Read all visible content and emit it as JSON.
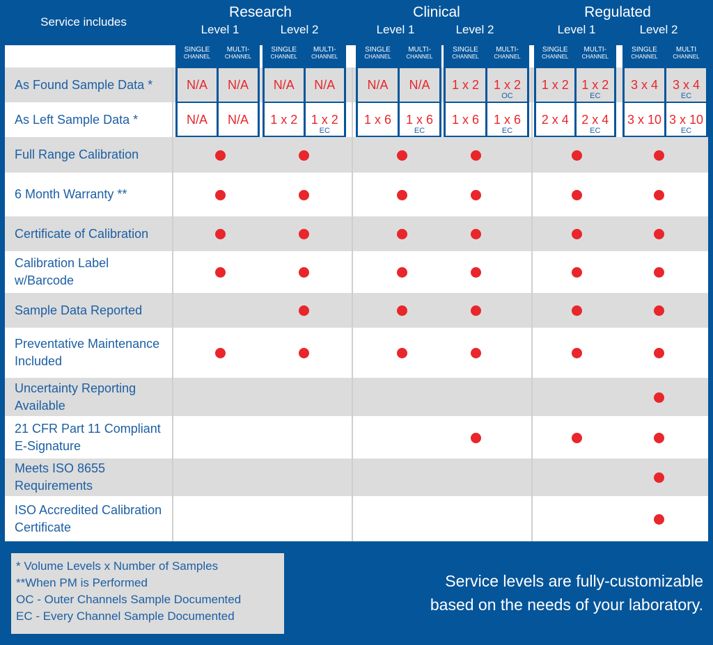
{
  "header": {
    "service_includes": "Service includes",
    "groups": [
      {
        "name": "Research",
        "levels": [
          "Level 1",
          "Level 2"
        ]
      },
      {
        "name": "Clinical",
        "levels": [
          "Level 1",
          "Level 2"
        ]
      },
      {
        "name": "Regulated",
        "levels": [
          "Level 1",
          "Level 2"
        ]
      }
    ]
  },
  "channel_headers": [
    [
      "SINGLE",
      "CHANNEL"
    ],
    [
      "MULTI-",
      "CHANNEL"
    ],
    [
      "SINGLE",
      "CHANNEL"
    ],
    [
      "MULTI-",
      "CHANNEL"
    ],
    [
      "SINGLE",
      "CHANNEL"
    ],
    [
      "MULTI-",
      "CHANNEL"
    ],
    [
      "SINGLE",
      "CHANNEL"
    ],
    [
      "MULTI-",
      "CHANNEL"
    ],
    [
      "SINGLE",
      "CHANNEL"
    ],
    [
      "MULTI-",
      "CHANNEL"
    ],
    [
      "SINGLE",
      "CHANNEL"
    ],
    [
      "MULTI",
      "CHANNEL"
    ]
  ],
  "sample_rows": [
    {
      "label": "As Found Sample Data *",
      "values": [
        [
          "N/A",
          ""
        ],
        [
          "N/A",
          ""
        ],
        [
          "N/A",
          ""
        ],
        [
          "N/A",
          ""
        ],
        [
          "N/A",
          ""
        ],
        [
          "N/A",
          ""
        ],
        [
          "1 x 2",
          ""
        ],
        [
          "1 x 2",
          "OC"
        ],
        [
          "1 x 2",
          ""
        ],
        [
          "1 x 2",
          "EC"
        ],
        [
          "3 x 4",
          ""
        ],
        [
          "3 x 4",
          "EC"
        ]
      ]
    },
    {
      "label": "As Left Sample Data *",
      "values": [
        [
          "N/A",
          ""
        ],
        [
          "N/A",
          ""
        ],
        [
          "1 x 2",
          ""
        ],
        [
          "1 x 2",
          "EC"
        ],
        [
          "1 x 6",
          ""
        ],
        [
          "1 x 6",
          "EC"
        ],
        [
          "1 x 6",
          ""
        ],
        [
          "1 x 6",
          "EC"
        ],
        [
          "2 x 4",
          ""
        ],
        [
          "2 x 4",
          "EC"
        ],
        [
          "3 x 10",
          ""
        ],
        [
          "3 x 10",
          "EC"
        ]
      ]
    }
  ],
  "feature_rows": [
    {
      "label": "Full Range Calibration",
      "included": [
        true,
        true,
        true,
        true,
        true,
        true
      ]
    },
    {
      "label": "6 Month Warranty **",
      "included": [
        true,
        true,
        true,
        true,
        true,
        true
      ]
    },
    {
      "label": "Certificate of Calibration",
      "included": [
        true,
        true,
        true,
        true,
        true,
        true
      ]
    },
    {
      "label": "Calibration Label w/Barcode",
      "included": [
        true,
        true,
        true,
        true,
        true,
        true
      ]
    },
    {
      "label": "Sample Data Reported",
      "included": [
        false,
        true,
        true,
        true,
        true,
        true
      ]
    },
    {
      "label": "Preventative Maintenance Included",
      "included": [
        true,
        true,
        true,
        true,
        true,
        true
      ]
    },
    {
      "label": "Uncertainty Reporting Available",
      "included": [
        false,
        false,
        false,
        false,
        false,
        true
      ]
    },
    {
      "label": "21 CFR Part 11 Compliant E-Signature",
      "included": [
        false,
        false,
        false,
        true,
        true,
        true
      ]
    },
    {
      "label": "Meets ISO 8655 Requirements",
      "included": [
        false,
        false,
        false,
        false,
        false,
        true
      ]
    },
    {
      "label": "ISO Accredited Calibration Certificate",
      "included": [
        false,
        false,
        false,
        false,
        false,
        true
      ]
    }
  ],
  "legend": [
    "* Volume Levels x Number of Samples",
    "**When PM is Performed",
    "OC - Outer Channels Sample Documented",
    "EC - Every Channel Sample Documented"
  ],
  "tagline": [
    "Service levels are fully-customizable",
    "based on the needs of your laboratory."
  ],
  "colors": {
    "brand_blue": "#05559a",
    "dot_red": "#e8262b",
    "row_gray": "#dcdcdc"
  }
}
